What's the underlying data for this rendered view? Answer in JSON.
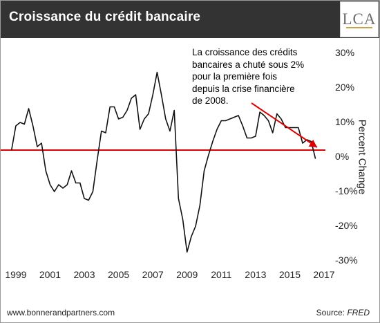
{
  "header": {
    "title": "Croissance du crédit bancaire",
    "logo_text": "LCA"
  },
  "annotation": {
    "lines": [
      "La croissance des crédits",
      "bancaires a chuté sous 2%",
      "pour la première fois",
      "depuis la crise financière",
      "de 2008."
    ]
  },
  "footer": {
    "site": "www.bonnerandpartners.com",
    "source_label": "Source: ",
    "source_name": "FRED"
  },
  "colors": {
    "series": "#111111",
    "reference_line": "#e00000",
    "arrow": "#e00000",
    "header_bg": "#333333"
  },
  "chart_data": {
    "type": "line",
    "ylabel": "Percent Change",
    "ylim": [
      -30,
      30
    ],
    "xlim": [
      1998.6,
      2017.0
    ],
    "y_ticks": [
      "30%",
      "20%",
      "10%",
      "0%",
      "-10%",
      "-20%",
      "-30%"
    ],
    "y_tick_values": [
      30,
      20,
      10,
      0,
      -10,
      -20,
      -30
    ],
    "x_ticks": [
      "1999",
      "2001",
      "2003",
      "2005",
      "2007",
      "2009",
      "2011",
      "2013",
      "2015",
      "2017"
    ],
    "x_tick_values": [
      1999,
      2001,
      2003,
      2005,
      2007,
      2009,
      2011,
      2013,
      2015,
      2017
    ],
    "grid": false,
    "reference_line_value": 2,
    "series": [
      {
        "x": [
          1998.75,
          1999.0,
          1999.25,
          1999.5,
          1999.75,
          2000.0,
          2000.25,
          2000.5,
          2000.75,
          2001.0,
          2001.25,
          2001.5,
          2001.75,
          2002.0,
          2002.25,
          2002.5,
          2002.75,
          2003.0,
          2003.25,
          2003.5,
          2003.75,
          2004.0,
          2004.25,
          2004.5,
          2004.75,
          2005.0,
          2005.25,
          2005.5,
          2005.75,
          2006.0,
          2006.25,
          2006.5,
          2006.75,
          2007.0,
          2007.25,
          2007.5,
          2007.75,
          2008.0,
          2008.25,
          2008.5,
          2008.75,
          2009.0,
          2009.25,
          2009.5,
          2009.75,
          2010.0,
          2010.25,
          2010.5,
          2010.75,
          2011.0,
          2011.25,
          2011.5,
          2011.75,
          2012.0,
          2012.25,
          2012.5,
          2012.75,
          2013.0,
          2013.25,
          2013.5,
          2013.75,
          2014.0,
          2014.25,
          2014.5,
          2014.75,
          2015.0,
          2015.25,
          2015.5,
          2015.75,
          2016.0,
          2016.25,
          2016.5
        ],
        "y": [
          2,
          9,
          10,
          9.5,
          14,
          9,
          3,
          4,
          -4,
          -8,
          -10,
          -8,
          -9,
          -8,
          -4,
          -7.5,
          -7.5,
          -12,
          -12.5,
          -10,
          -1,
          7.5,
          7,
          14.5,
          14.5,
          11,
          11.5,
          13.5,
          17,
          18,
          8,
          11,
          12.5,
          18,
          24.5,
          18,
          11,
          7.5,
          13.5,
          -12,
          -18,
          -27.5,
          -23,
          -20,
          -14,
          -4,
          0.5,
          4.5,
          8,
          10.5,
          10.5,
          11,
          11.5,
          12,
          9,
          5.5,
          5.5,
          6,
          13,
          12,
          10.5,
          7,
          12.5,
          11,
          8.5,
          8.5,
          8.5,
          8.5,
          4,
          5,
          4.5,
          -0.5
        ]
      }
    ]
  }
}
